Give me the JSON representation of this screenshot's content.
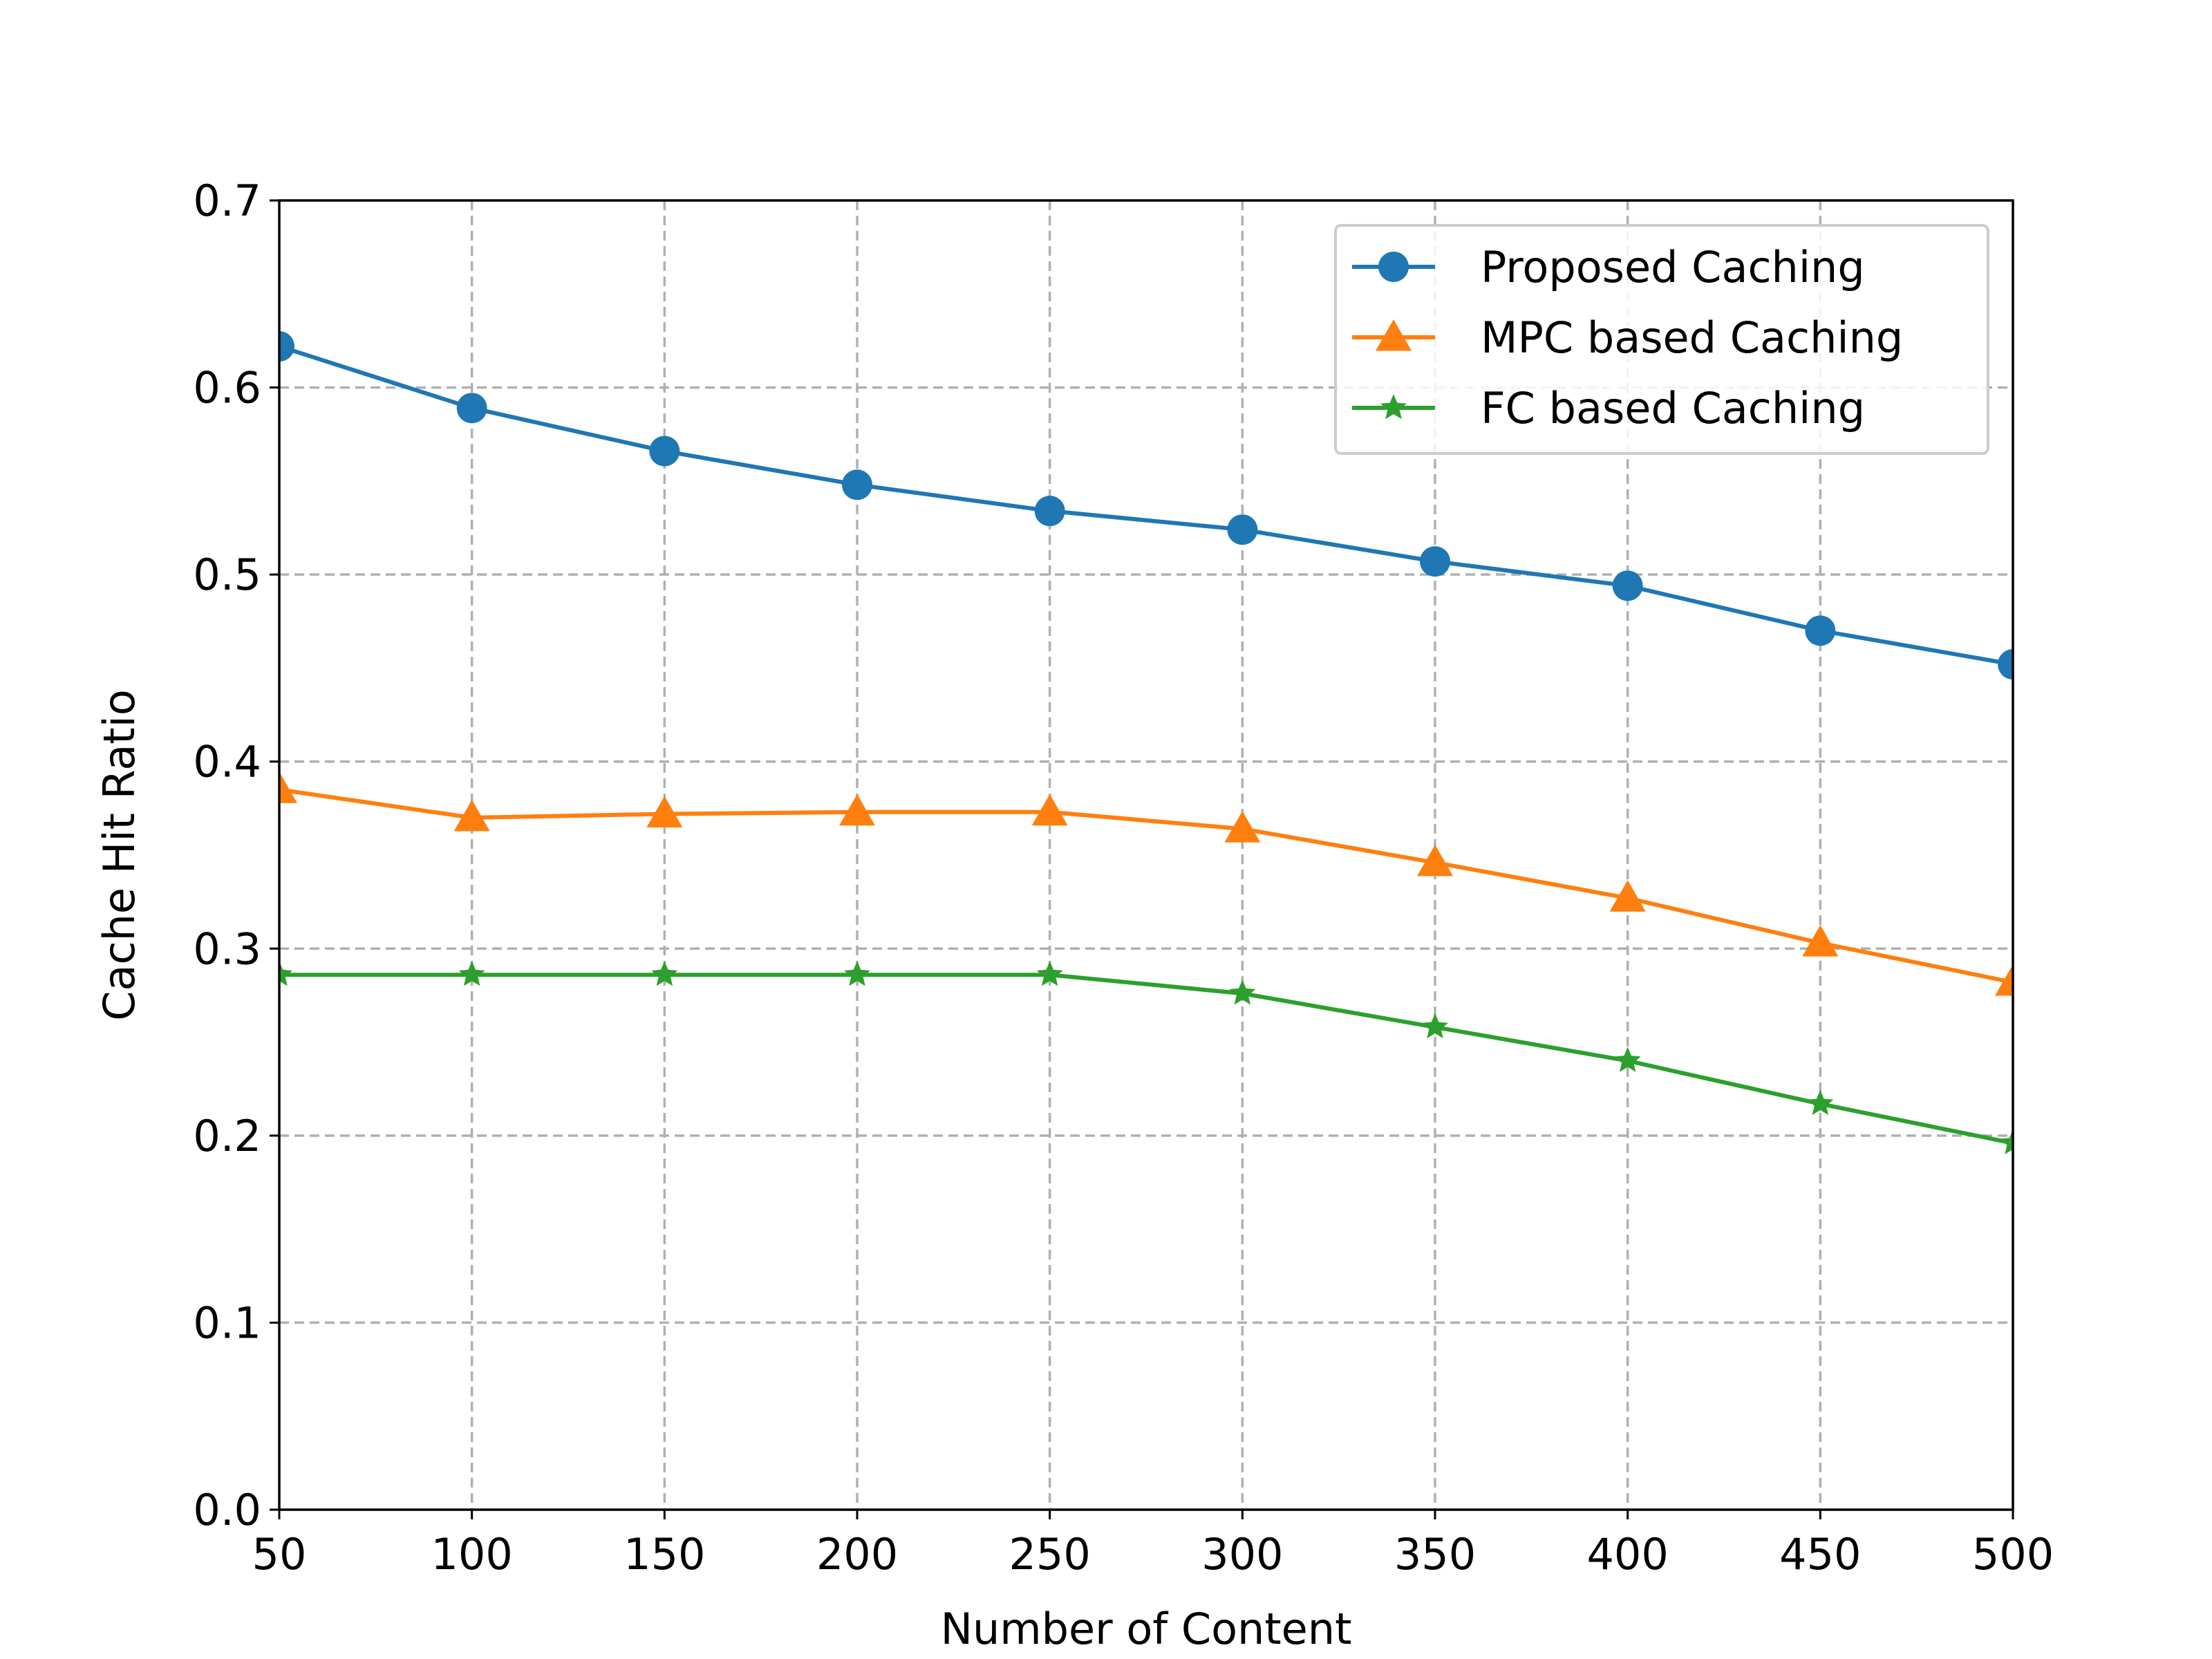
{
  "chart_data": {
    "type": "line",
    "title": "",
    "xlabel": "Number of Content",
    "ylabel": "Cache Hit Ratio",
    "x": [
      50,
      100,
      150,
      200,
      250,
      300,
      350,
      400,
      450,
      500
    ],
    "xlim": [
      50,
      500
    ],
    "ylim": [
      0.0,
      0.7
    ],
    "xticks": [
      "50",
      "100",
      "150",
      "200",
      "250",
      "300",
      "350",
      "400",
      "450",
      "500"
    ],
    "yticks": [
      "0.0",
      "0.1",
      "0.2",
      "0.3",
      "0.4",
      "0.5",
      "0.6",
      "0.7"
    ],
    "grid": true,
    "legend_position": "upper right",
    "series": [
      {
        "name": "Proposed Caching",
        "color": "#1f77b4",
        "marker": "circle",
        "values": [
          0.622,
          0.589,
          0.566,
          0.548,
          0.534,
          0.524,
          0.507,
          0.494,
          0.47,
          0.452
        ]
      },
      {
        "name": "MPC based Caching",
        "color": "#ff7f0e",
        "marker": "triangle",
        "values": [
          0.385,
          0.37,
          0.372,
          0.373,
          0.373,
          0.364,
          0.346,
          0.327,
          0.303,
          0.282
        ]
      },
      {
        "name": "FC based Caching",
        "color": "#2ca02c",
        "marker": "star",
        "values": [
          0.286,
          0.286,
          0.286,
          0.286,
          0.286,
          0.276,
          0.258,
          0.24,
          0.217,
          0.196
        ]
      }
    ]
  }
}
